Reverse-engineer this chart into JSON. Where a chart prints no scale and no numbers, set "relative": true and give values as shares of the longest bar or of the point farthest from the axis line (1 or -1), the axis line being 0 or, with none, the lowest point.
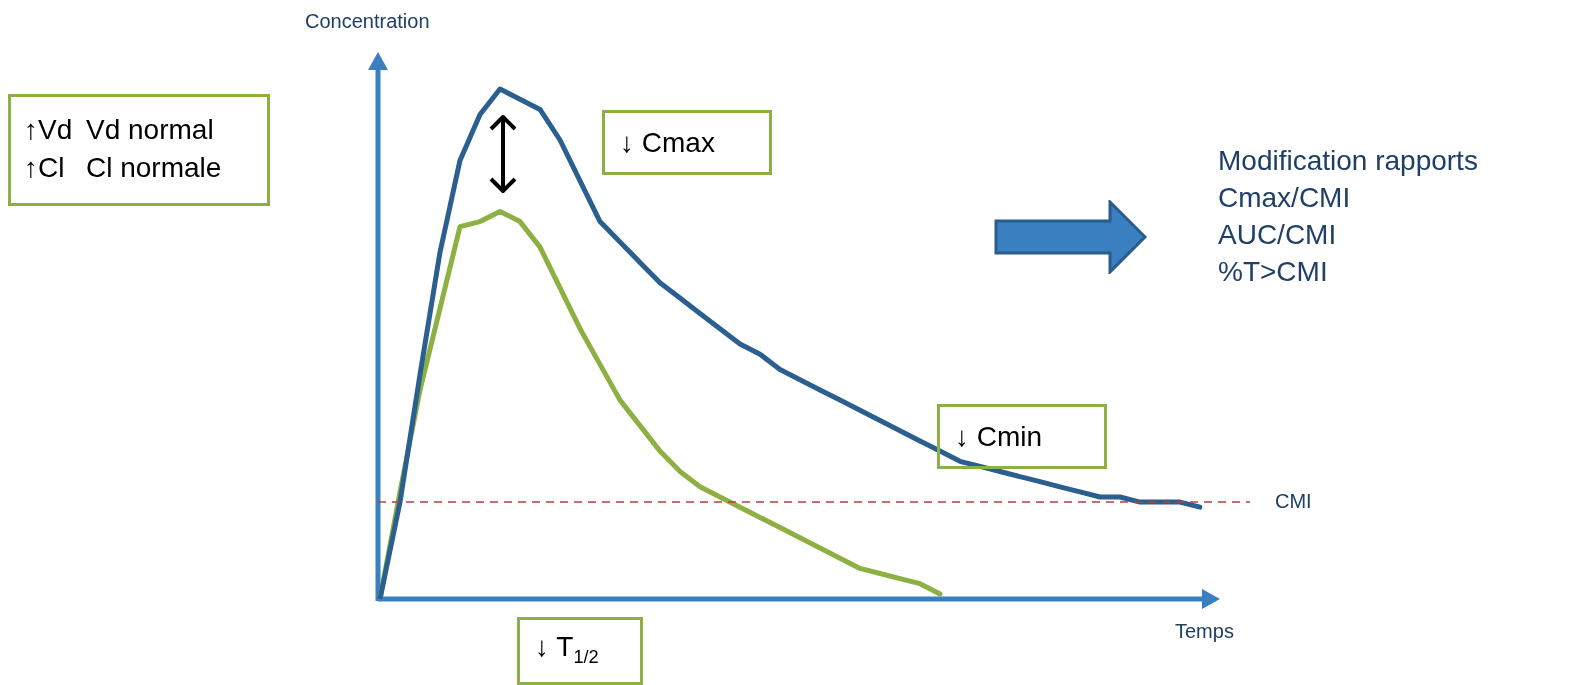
{
  "chart_data": {
    "type": "line",
    "relative": true,
    "xlabel": "Temps",
    "ylabel": "Concentration",
    "tick_labels": false,
    "categories": [
      null,
      null,
      null,
      null,
      null,
      null,
      null,
      null,
      null,
      null,
      null,
      null,
      null,
      null,
      null,
      null,
      null,
      null,
      null,
      null,
      null,
      null,
      null,
      null,
      null,
      null,
      null,
      null,
      null,
      null,
      null,
      null,
      null,
      null,
      null,
      null,
      null,
      null,
      null,
      null,
      null,
      null
    ],
    "series": [
      {
        "color": "#2a5f8f",
        "values": [
          0,
          0.19,
          0.44,
          0.68,
          0.86,
          0.95,
          1,
          0.98,
          0.96,
          0.9,
          0.82,
          0.74,
          0.7,
          0.66,
          0.62,
          0.59,
          0.56,
          0.53,
          0.5,
          0.48,
          0.45,
          0.43,
          0.41,
          0.39,
          0.37,
          0.35,
          0.33,
          0.31,
          0.29,
          0.27,
          0.26,
          0.25,
          0.24,
          0.23,
          0.22,
          0.21,
          0.2,
          0.2,
          0.19,
          0.19,
          0.19,
          0.18
        ]
      },
      {
        "color": "#8db043",
        "values": [
          0,
          0.21,
          0.41,
          0.57,
          0.73,
          0.74,
          0.76,
          0.74,
          0.69,
          0.61,
          0.53,
          0.46,
          0.39,
          0.34,
          0.29,
          0.25,
          0.22,
          0.2,
          0.18,
          0.16,
          0.14,
          0.12,
          0.1,
          0.08,
          0.06,
          0.05,
          0.04,
          0.03,
          0.01,
          null,
          null,
          null,
          null,
          null,
          null,
          null,
          null,
          null,
          null,
          null,
          null,
          null
        ]
      }
    ],
    "ref_lines": [
      {
        "axis": "y",
        "value": 0.19,
        "label": "CMI",
        "color": "#b04040",
        "line_style": "dashed"
      }
    ],
    "annotations": [
      "↑Vd",
      "Vd normal",
      "↑Cl",
      "Cl normale",
      "↓ Cmax",
      "↓ Cmin",
      "↓ T$_{1/2}$",
      "Modification rapports",
      "Cmax/CMI",
      "AUC/CMI",
      "%T>CMI"
    ]
  }
}
